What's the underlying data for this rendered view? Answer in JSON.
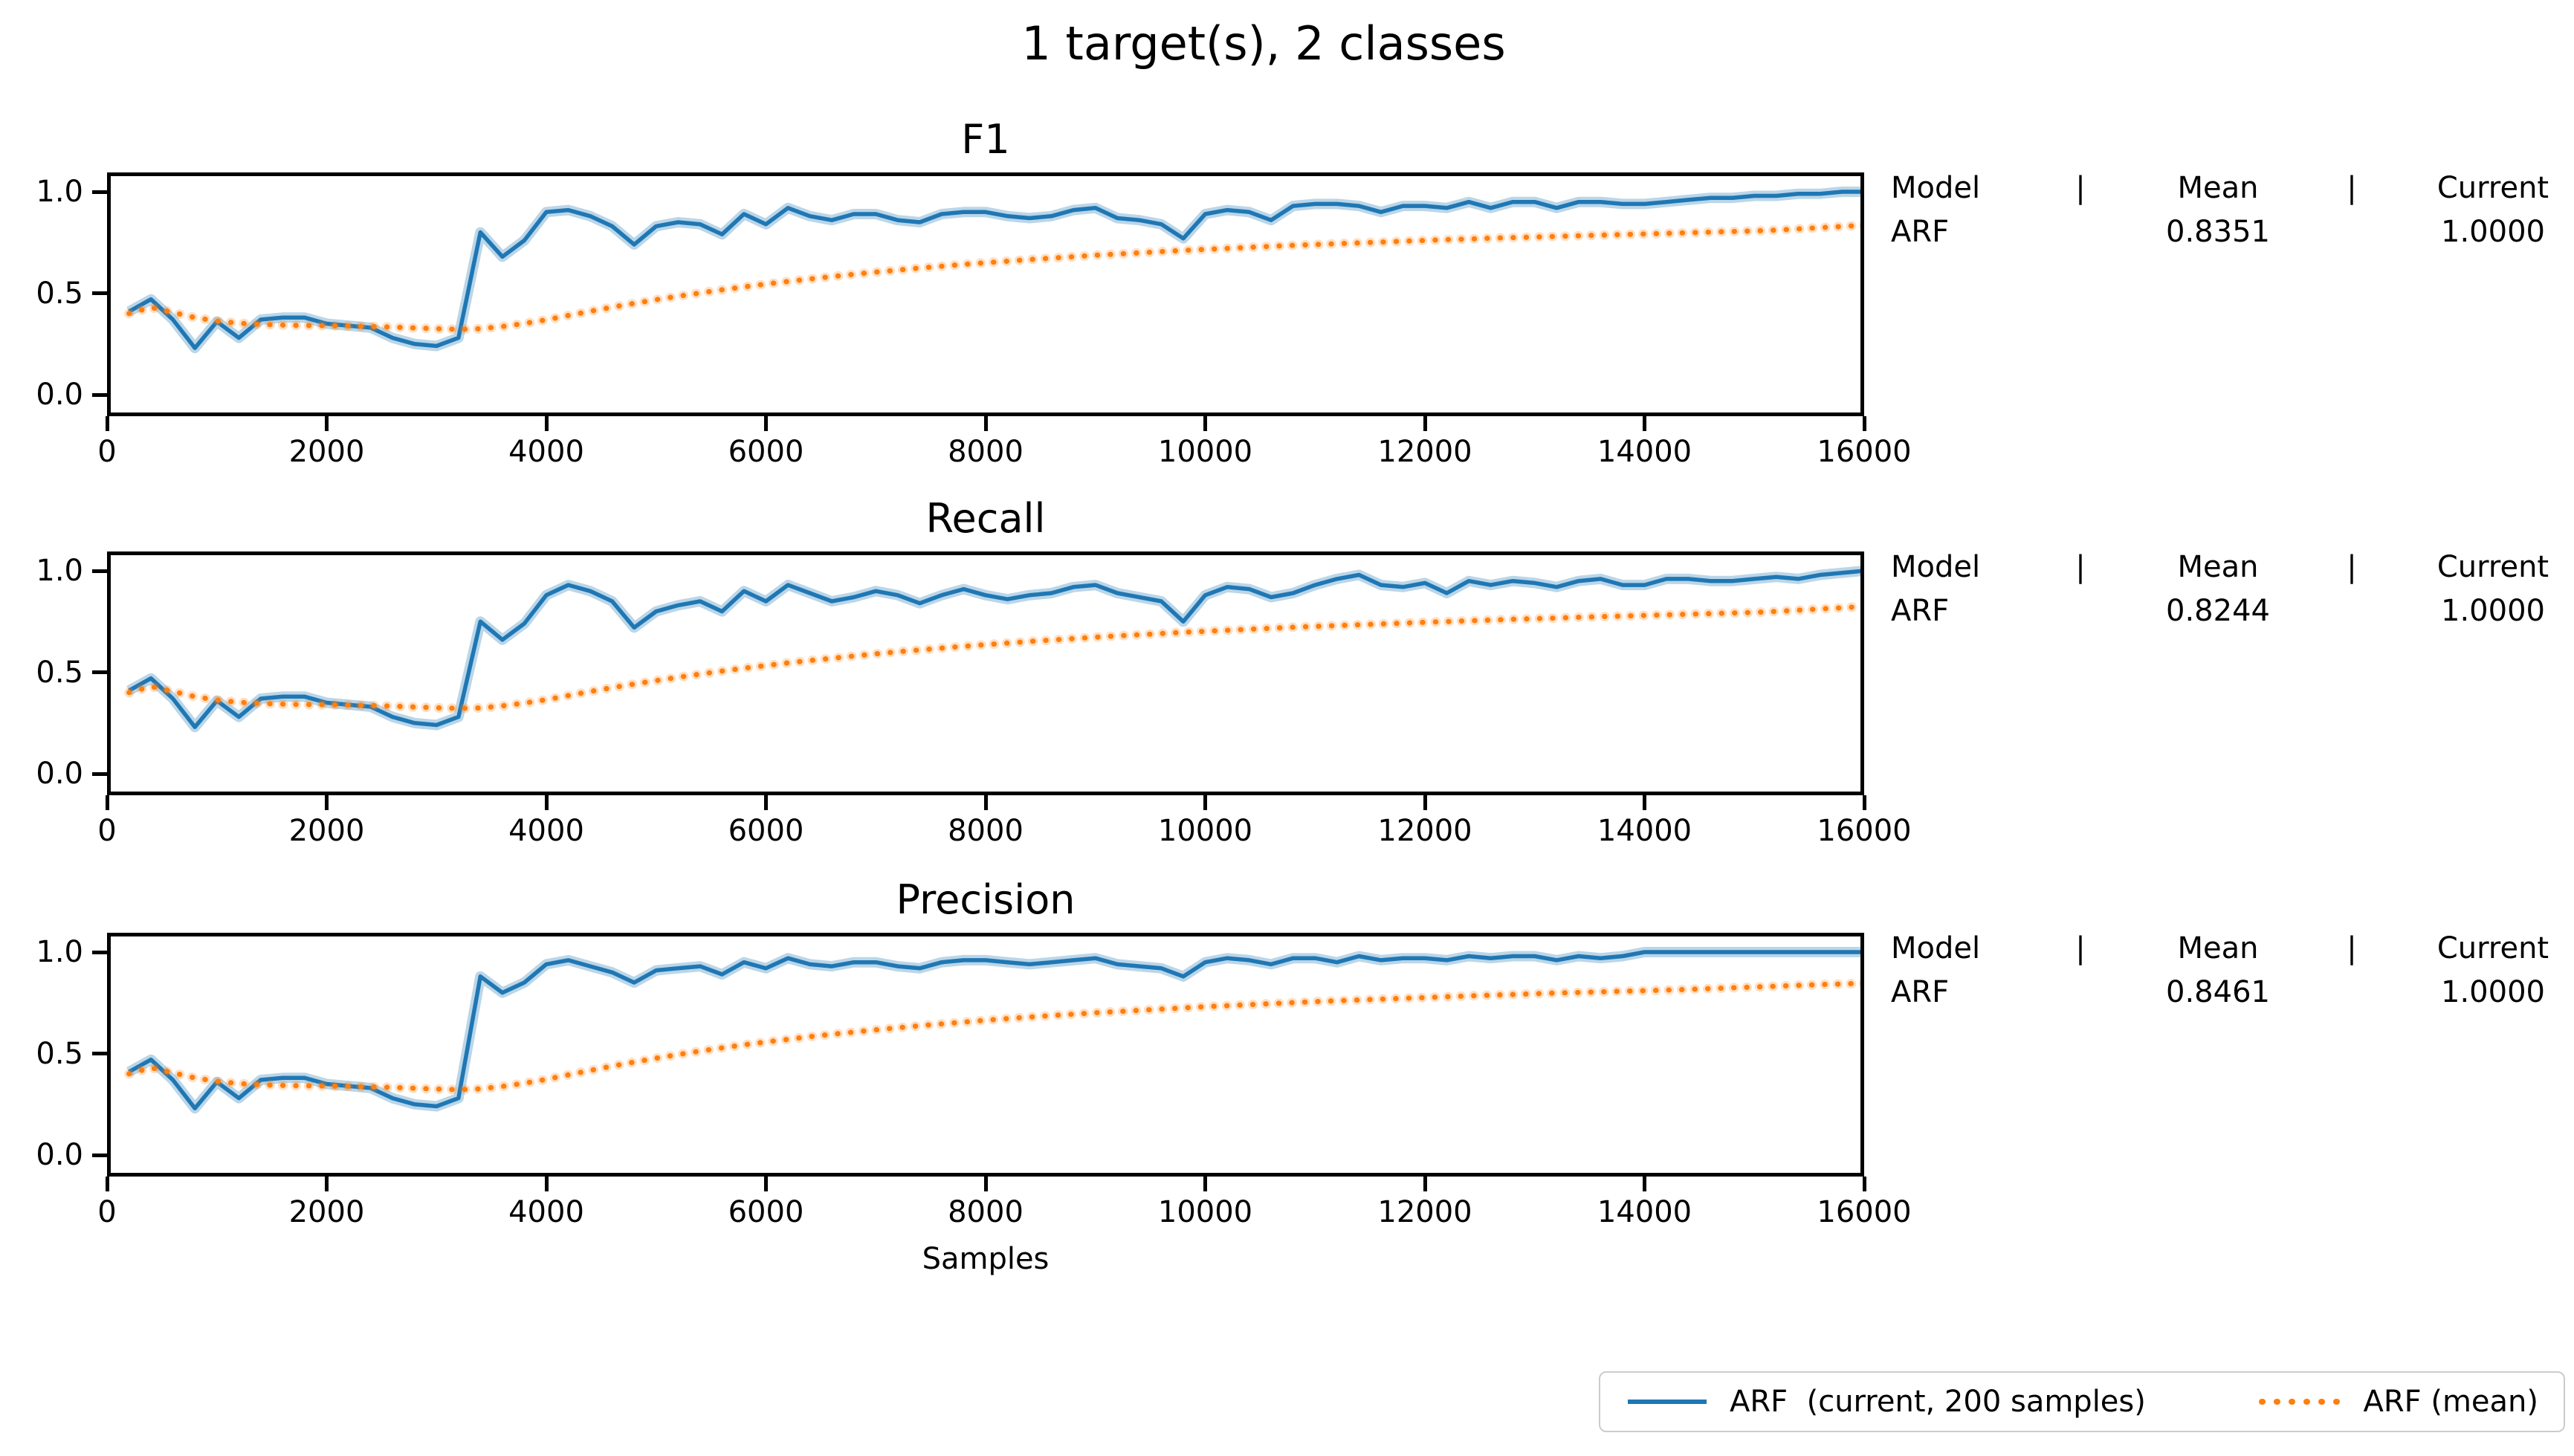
{
  "figure": {
    "suptitle": "1 target(s), 2 classes",
    "xlabel": "Samples"
  },
  "axes": {
    "x_ticks": [
      0,
      2000,
      4000,
      6000,
      8000,
      10000,
      12000,
      14000,
      16000
    ],
    "y_ticks": [
      {
        "v": 1.0,
        "label": "1.0"
      },
      {
        "v": 0.5,
        "label": "0.5"
      },
      {
        "v": 0.0,
        "label": "0.0"
      }
    ],
    "xlim": [
      0,
      16000
    ],
    "ylim": [
      -0.106,
      1.095
    ]
  },
  "info_table": {
    "headers": [
      "Model",
      "|",
      "Mean",
      "|",
      "Current"
    ],
    "rows": [
      {
        "model": "ARF",
        "mean": "0.8351",
        "current": "1.0000"
      },
      {
        "model": "ARF",
        "mean": "0.8244",
        "current": "1.0000"
      },
      {
        "model": "ARF",
        "mean": "0.8461",
        "current": "1.0000"
      }
    ]
  },
  "legend": {
    "items": [
      {
        "label": "ARF  (current, 200 samples)",
        "marker": "solid-line",
        "color": "#1f77b4"
      },
      {
        "label": "ARF (mean)",
        "marker": "dotted-line",
        "color": "#ff7f0e"
      }
    ]
  },
  "chart_data": {
    "type": "line",
    "xlabel": "Samples",
    "xlim": [
      0,
      16000
    ],
    "ylim": [
      -0.106,
      1.095
    ],
    "grid": false,
    "legend_position": "lower-right-outside",
    "colors": {
      "current": "#1f77b4",
      "mean": "#ff7f0e"
    },
    "x": [
      200,
      400,
      600,
      800,
      1000,
      1200,
      1400,
      1600,
      1800,
      2000,
      2200,
      2400,
      2600,
      2800,
      3000,
      3200,
      3400,
      3600,
      3800,
      4000,
      4200,
      4400,
      4600,
      4800,
      5000,
      5200,
      5400,
      5600,
      5800,
      6000,
      6200,
      6400,
      6600,
      6800,
      7000,
      7200,
      7400,
      7600,
      7800,
      8000,
      8200,
      8400,
      8600,
      8800,
      9000,
      9200,
      9400,
      9600,
      9800,
      10000,
      10200,
      10400,
      10600,
      10800,
      11000,
      11200,
      11400,
      11600,
      11800,
      12000,
      12200,
      12400,
      12600,
      12800,
      13000,
      13200,
      13400,
      13600,
      13800,
      14000,
      14200,
      14400,
      14600,
      14800,
      15000,
      15200,
      15400,
      15600,
      15800,
      16000
    ],
    "charts": [
      {
        "title": "F1",
        "mean_stat": 0.8351,
        "current_stat": 1.0,
        "series": [
          {
            "name": "ARF (current, 200 samples)",
            "values": [
              0.41,
              0.47,
              0.37,
              0.23,
              0.36,
              0.28,
              0.37,
              0.38,
              0.38,
              0.35,
              0.34,
              0.33,
              0.28,
              0.25,
              0.24,
              0.28,
              0.8,
              0.68,
              0.76,
              0.9,
              0.91,
              0.88,
              0.83,
              0.74,
              0.83,
              0.85,
              0.84,
              0.79,
              0.89,
              0.84,
              0.92,
              0.88,
              0.86,
              0.89,
              0.89,
              0.86,
              0.85,
              0.89,
              0.9,
              0.9,
              0.88,
              0.87,
              0.88,
              0.91,
              0.92,
              0.87,
              0.86,
              0.84,
              0.77,
              0.89,
              0.91,
              0.9,
              0.86,
              0.93,
              0.94,
              0.94,
              0.93,
              0.9,
              0.93,
              0.93,
              0.92,
              0.95,
              0.92,
              0.95,
              0.95,
              0.92,
              0.95,
              0.95,
              0.94,
              0.94,
              0.95,
              0.96,
              0.97,
              0.97,
              0.98,
              0.98,
              0.99,
              0.99,
              1.0,
              1.0
            ]
          },
          {
            "name": "ARF (mean)",
            "values": [
              0.4,
              0.43,
              0.405,
              0.38,
              0.363,
              0.352,
              0.346,
              0.343,
              0.341,
              0.34,
              0.338,
              0.336,
              0.333,
              0.329,
              0.325,
              0.322,
              0.325,
              0.336,
              0.351,
              0.369,
              0.39,
              0.411,
              0.431,
              0.45,
              0.468,
              0.485,
              0.501,
              0.517,
              0.531,
              0.545,
              0.558,
              0.57,
              0.582,
              0.593,
              0.604,
              0.614,
              0.624,
              0.633,
              0.642,
              0.65,
              0.658,
              0.666,
              0.673,
              0.68,
              0.687,
              0.693,
              0.699,
              0.705,
              0.711,
              0.716,
              0.721,
              0.726,
              0.731,
              0.736,
              0.74,
              0.744,
              0.748,
              0.752,
              0.756,
              0.76,
              0.764,
              0.767,
              0.771,
              0.774,
              0.777,
              0.78,
              0.783,
              0.786,
              0.789,
              0.792,
              0.795,
              0.798,
              0.801,
              0.804,
              0.807,
              0.811,
              0.817,
              0.823,
              0.829,
              0.835
            ]
          }
        ]
      },
      {
        "title": "Recall",
        "mean_stat": 0.8244,
        "current_stat": 1.0,
        "series": [
          {
            "name": "ARF (current, 200 samples)",
            "values": [
              0.41,
              0.47,
              0.37,
              0.23,
              0.36,
              0.28,
              0.37,
              0.38,
              0.38,
              0.35,
              0.34,
              0.33,
              0.28,
              0.25,
              0.24,
              0.28,
              0.75,
              0.66,
              0.74,
              0.88,
              0.93,
              0.9,
              0.85,
              0.72,
              0.8,
              0.83,
              0.85,
              0.8,
              0.9,
              0.85,
              0.93,
              0.89,
              0.85,
              0.87,
              0.9,
              0.88,
              0.84,
              0.88,
              0.91,
              0.88,
              0.86,
              0.88,
              0.89,
              0.92,
              0.93,
              0.89,
              0.87,
              0.85,
              0.75,
              0.88,
              0.92,
              0.91,
              0.87,
              0.89,
              0.93,
              0.96,
              0.98,
              0.93,
              0.92,
              0.94,
              0.89,
              0.95,
              0.93,
              0.95,
              0.94,
              0.92,
              0.95,
              0.96,
              0.93,
              0.93,
              0.96,
              0.96,
              0.95,
              0.95,
              0.96,
              0.97,
              0.96,
              0.98,
              0.99,
              1.0
            ]
          },
          {
            "name": "ARF (mean)",
            "values": [
              0.4,
              0.43,
              0.405,
              0.38,
              0.363,
              0.352,
              0.346,
              0.343,
              0.341,
              0.34,
              0.338,
              0.336,
              0.333,
              0.329,
              0.325,
              0.322,
              0.324,
              0.334,
              0.348,
              0.365,
              0.385,
              0.405,
              0.424,
              0.442,
              0.459,
              0.475,
              0.491,
              0.506,
              0.52,
              0.533,
              0.546,
              0.558,
              0.569,
              0.58,
              0.591,
              0.601,
              0.61,
              0.619,
              0.628,
              0.636,
              0.644,
              0.652,
              0.659,
              0.666,
              0.673,
              0.679,
              0.685,
              0.691,
              0.697,
              0.702,
              0.707,
              0.712,
              0.717,
              0.722,
              0.726,
              0.73,
              0.734,
              0.738,
              0.742,
              0.746,
              0.75,
              0.754,
              0.757,
              0.761,
              0.764,
              0.767,
              0.771,
              0.774,
              0.777,
              0.78,
              0.783,
              0.786,
              0.789,
              0.792,
              0.795,
              0.8,
              0.806,
              0.812,
              0.818,
              0.824
            ]
          }
        ]
      },
      {
        "title": "Precision",
        "mean_stat": 0.8461,
        "current_stat": 1.0,
        "series": [
          {
            "name": "ARF (current, 200 samples)",
            "values": [
              0.41,
              0.47,
              0.37,
              0.23,
              0.36,
              0.28,
              0.37,
              0.38,
              0.38,
              0.35,
              0.34,
              0.33,
              0.28,
              0.25,
              0.24,
              0.28,
              0.88,
              0.8,
              0.85,
              0.94,
              0.96,
              0.93,
              0.9,
              0.85,
              0.91,
              0.92,
              0.93,
              0.89,
              0.95,
              0.92,
              0.97,
              0.94,
              0.93,
              0.95,
              0.95,
              0.93,
              0.92,
              0.95,
              0.96,
              0.96,
              0.95,
              0.94,
              0.95,
              0.96,
              0.97,
              0.94,
              0.93,
              0.92,
              0.88,
              0.95,
              0.97,
              0.96,
              0.94,
              0.97,
              0.97,
              0.95,
              0.98,
              0.96,
              0.97,
              0.97,
              0.96,
              0.98,
              0.97,
              0.98,
              0.98,
              0.96,
              0.98,
              0.97,
              0.98,
              1.0,
              1.0,
              1.0,
              1.0,
              1.0,
              1.0,
              1.0,
              1.0,
              1.0,
              1.0,
              1.0
            ]
          },
          {
            "name": "ARF (mean)",
            "values": [
              0.4,
              0.43,
              0.405,
              0.38,
              0.363,
              0.352,
              0.346,
              0.343,
              0.341,
              0.34,
              0.338,
              0.336,
              0.333,
              0.329,
              0.325,
              0.322,
              0.326,
              0.338,
              0.354,
              0.373,
              0.395,
              0.417,
              0.438,
              0.458,
              0.477,
              0.495,
              0.512,
              0.528,
              0.543,
              0.557,
              0.57,
              0.583,
              0.595,
              0.606,
              0.617,
              0.627,
              0.637,
              0.646,
              0.655,
              0.664,
              0.672,
              0.68,
              0.687,
              0.694,
              0.701,
              0.707,
              0.713,
              0.719,
              0.725,
              0.731,
              0.736,
              0.741,
              0.746,
              0.751,
              0.756,
              0.76,
              0.764,
              0.768,
              0.772,
              0.776,
              0.78,
              0.784,
              0.788,
              0.791,
              0.795,
              0.798,
              0.801,
              0.804,
              0.807,
              0.81,
              0.813,
              0.816,
              0.82,
              0.824,
              0.828,
              0.832,
              0.836,
              0.84,
              0.843,
              0.846
            ]
          }
        ]
      }
    ]
  }
}
